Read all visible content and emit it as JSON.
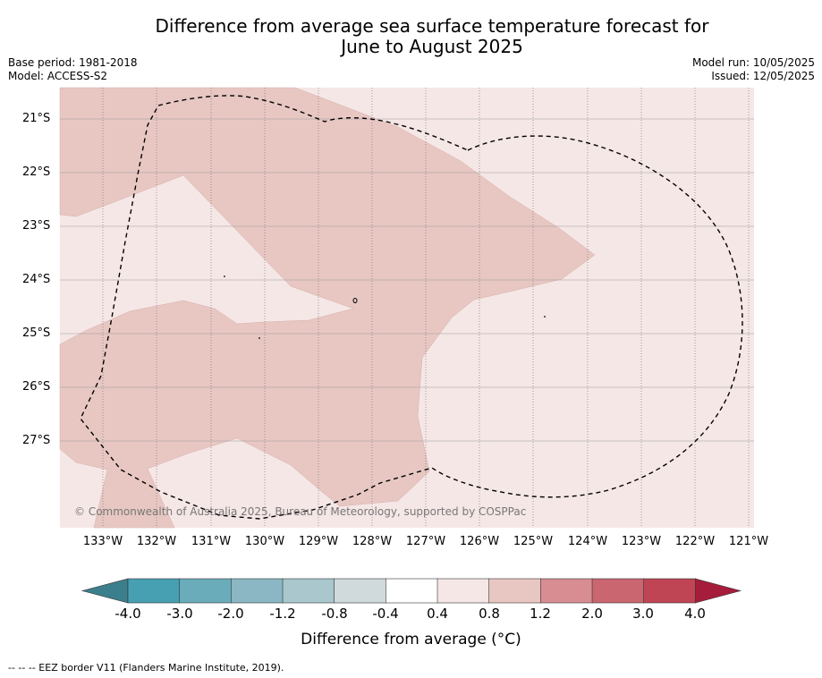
{
  "title_line1": "Difference from average sea surface temperature forecast for",
  "title_line2": "June to August 2025",
  "base_period": "Base period: 1981-2018",
  "model": "Model: ACCESS-S2",
  "model_run": "Model run: 10/05/2025",
  "issued": "Issued: 12/05/2025",
  "copyright": "© Commonwealth of Australia 2025, Bureau of Meteorology, supported by COSPPac",
  "lat_labels": [
    "21°S",
    "22°S",
    "23°S",
    "24°S",
    "25°S",
    "26°S",
    "27°S"
  ],
  "lon_labels": [
    "133°W",
    "132°W",
    "131°W",
    "130°W",
    "129°W",
    "128°W",
    "127°W",
    "126°W",
    "125°W",
    "124°W",
    "123°W",
    "122°W",
    "121°W"
  ],
  "colorbar": {
    "title": "Difference from average (°C)",
    "ticks": [
      "-4.0",
      "-3.0",
      "-2.0",
      "-1.2",
      "-0.8",
      "-0.4",
      "0.4",
      "0.8",
      "1.2",
      "2.0",
      "3.0",
      "4.0"
    ],
    "colors": [
      "#3c7f8c",
      "#47a0b1",
      "#6aacb9",
      "#8ab7c3",
      "#a9c7cd",
      "#d0d9dc",
      "#ffffff",
      "#f5e7e6",
      "#e8c7c3",
      "#d88d93",
      "#c96670",
      "#bf4555",
      "#a51d3a"
    ]
  },
  "legend_footnote": "--  --  -- EEZ border V11 (Flanders Marine Institute, 2019).",
  "field_colors": {
    "band_04_08": "#f5e7e6",
    "band_08_12": "#e8c7c3"
  }
}
